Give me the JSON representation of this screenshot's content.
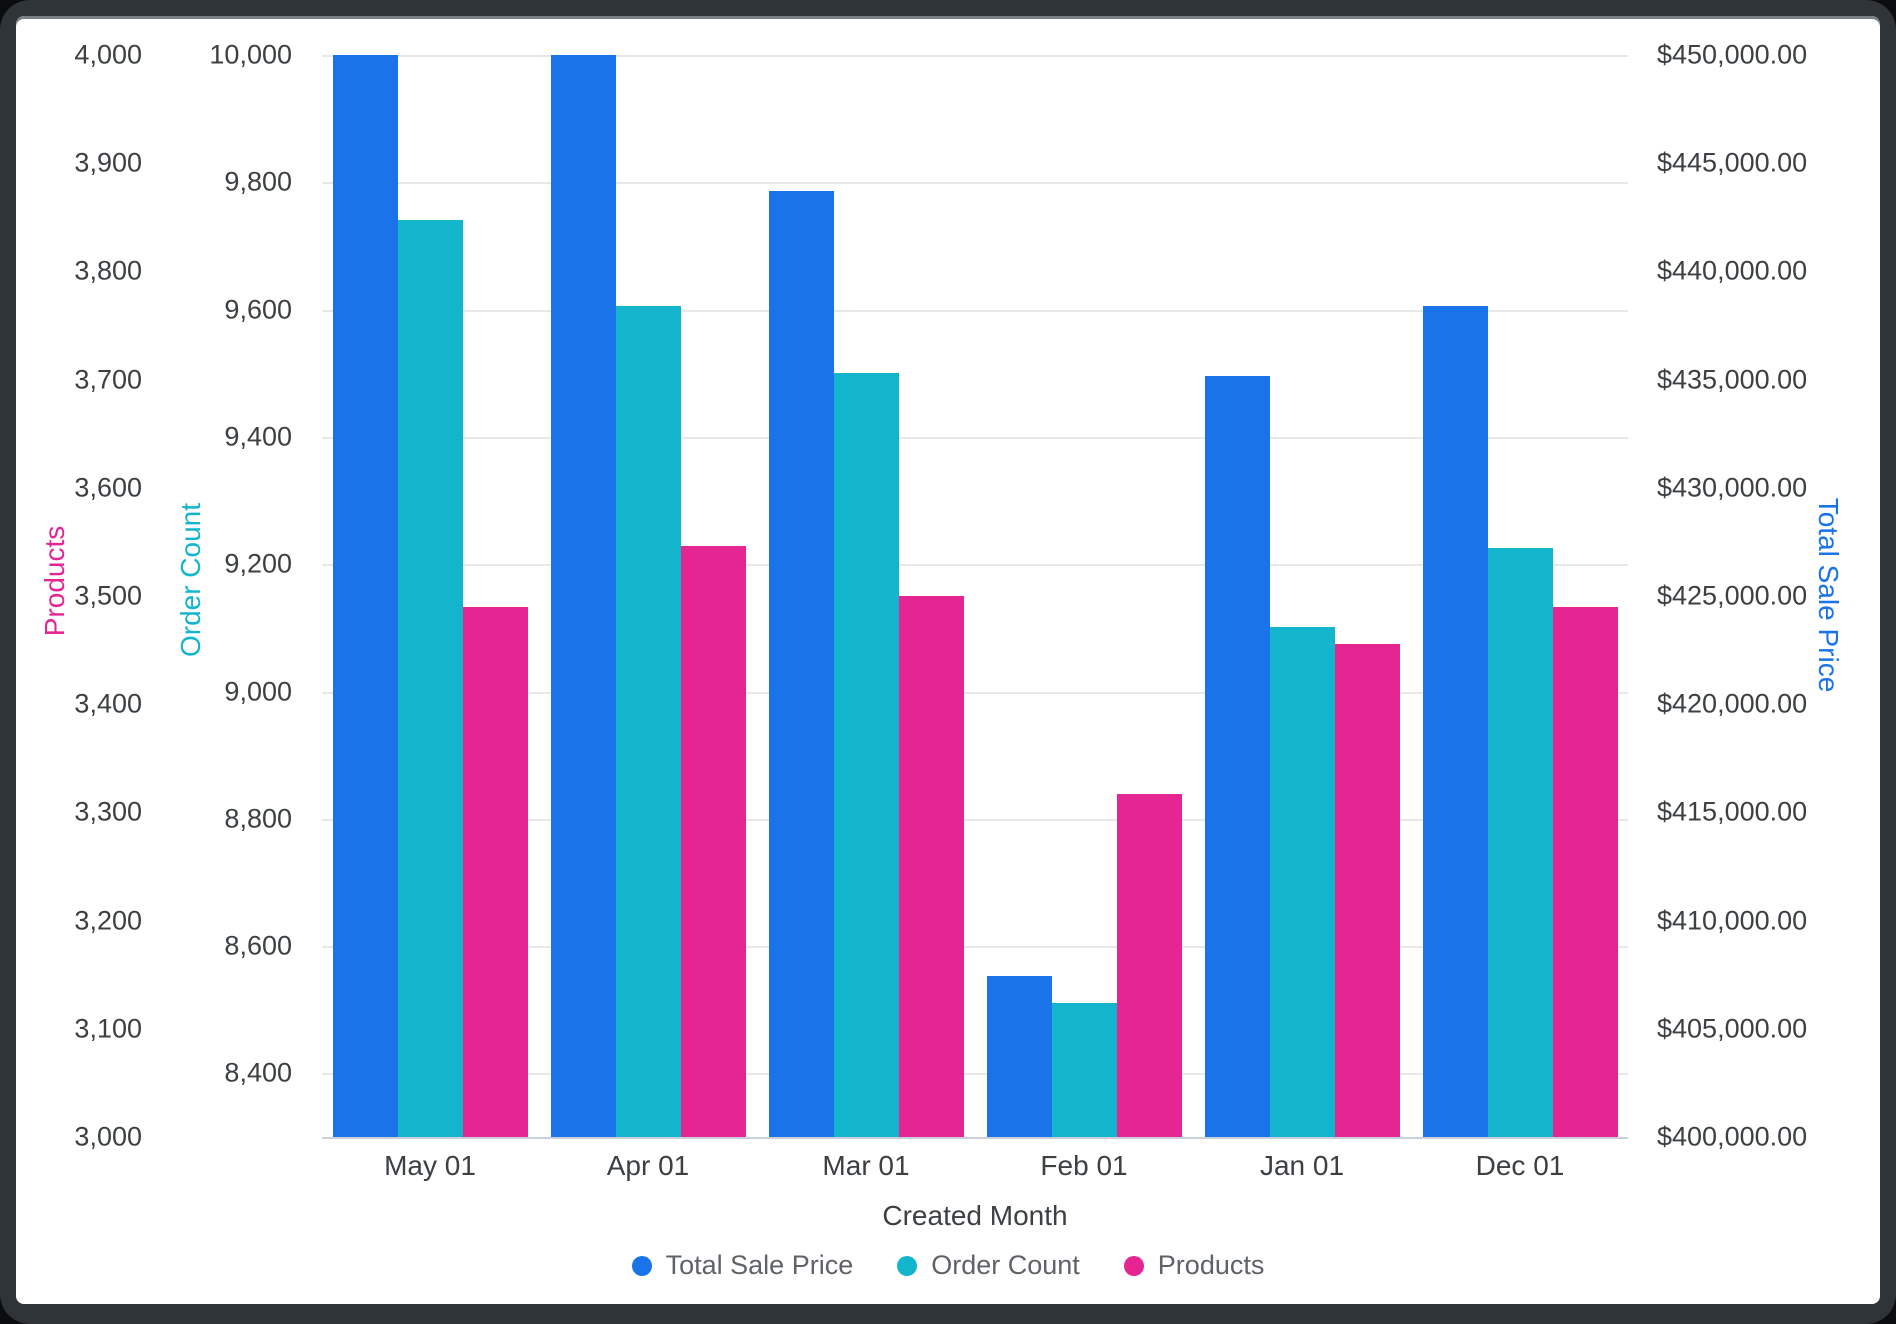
{
  "window": {
    "frame_color": "#2e3438",
    "panel_background": "#ffffff"
  },
  "chart_data": {
    "type": "bar",
    "title": "",
    "xlabel": "Created Month",
    "categories": [
      "May 01",
      "Apr 01",
      "Mar 01",
      "Feb 01",
      "Jan 01",
      "Dec 01"
    ],
    "series": [
      {
        "name": "Total Sale Price",
        "axis": "price",
        "color": "#1a73e8",
        "values": [
          450000,
          450000,
          443700,
          407450,
          435150,
          438400
        ]
      },
      {
        "name": "Order Count",
        "axis": "order",
        "color": "#12b5cb",
        "values": [
          9741,
          9606,
          9500,
          8510,
          9101,
          9225
        ]
      },
      {
        "name": "Products",
        "axis": "products",
        "color": "#e52592",
        "values": [
          3490,
          3546,
          3500,
          3317,
          3456,
          3490
        ]
      }
    ],
    "axes": {
      "products": {
        "title": "Products",
        "color": "#e52592",
        "side": "left-outer",
        "range": [
          3000,
          4000
        ],
        "ticks": [
          {
            "v": 3000,
            "label": "3,000"
          },
          {
            "v": 3100,
            "label": "3,100"
          },
          {
            "v": 3200,
            "label": "3,200"
          },
          {
            "v": 3300,
            "label": "3,300"
          },
          {
            "v": 3400,
            "label": "3,400"
          },
          {
            "v": 3500,
            "label": "3,500"
          },
          {
            "v": 3600,
            "label": "3,600"
          },
          {
            "v": 3700,
            "label": "3,700"
          },
          {
            "v": 3800,
            "label": "3,800"
          },
          {
            "v": 3900,
            "label": "3,900"
          },
          {
            "v": 4000,
            "label": "4,000"
          }
        ]
      },
      "order": {
        "title": "Order Count",
        "color": "#12b5cb",
        "side": "left-inner",
        "range": [
          8300,
          10000
        ],
        "ticks": [
          {
            "v": 8400,
            "label": "8,400"
          },
          {
            "v": 8600,
            "label": "8,600"
          },
          {
            "v": 8800,
            "label": "8,800"
          },
          {
            "v": 9000,
            "label": "9,000"
          },
          {
            "v": 9200,
            "label": "9,200"
          },
          {
            "v": 9400,
            "label": "9,400"
          },
          {
            "v": 9600,
            "label": "9,600"
          },
          {
            "v": 9800,
            "label": "9,800"
          },
          {
            "v": 10000,
            "label": "10,000"
          }
        ]
      },
      "price": {
        "title": "Total Sale Price",
        "color": "#1a73e8",
        "side": "right",
        "range": [
          400000,
          450000
        ],
        "ticks": [
          {
            "v": 400000,
            "label": "$400,000.00"
          },
          {
            "v": 405000,
            "label": "$405,000.00"
          },
          {
            "v": 410000,
            "label": "$410,000.00"
          },
          {
            "v": 415000,
            "label": "$415,000.00"
          },
          {
            "v": 420000,
            "label": "$420,000.00"
          },
          {
            "v": 425000,
            "label": "$425,000.00"
          },
          {
            "v": 430000,
            "label": "$430,000.00"
          },
          {
            "v": 435000,
            "label": "$435,000.00"
          },
          {
            "v": 440000,
            "label": "$440,000.00"
          },
          {
            "v": 445000,
            "label": "$445,000.00"
          },
          {
            "v": 450000,
            "label": "$450,000.00"
          }
        ]
      }
    },
    "grid": {
      "show": true,
      "aligned_to": "order",
      "color": "#e8e8e8",
      "baseline_color": "#c9cfdb"
    },
    "legend_position": "bottom"
  },
  "style": {
    "tick_text_color": "#3c4043",
    "legend_text_color": "#5f6368"
  }
}
